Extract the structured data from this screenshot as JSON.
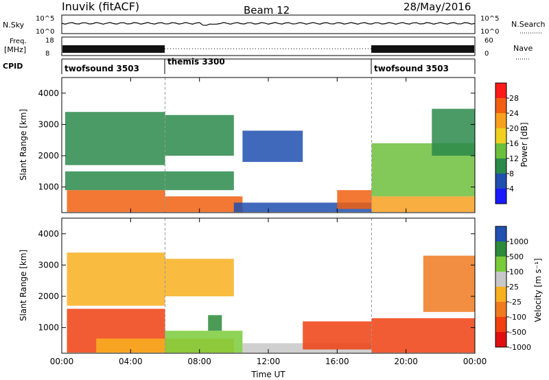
{
  "header": {
    "station": "Inuvik (fitACF)",
    "beam": "Beam 12",
    "date": "28/May/2016"
  },
  "strips": {
    "nsky_label": "N.Sky",
    "nsky_ticks": [
      "10^5",
      "10^0"
    ],
    "nsearch_label": "N.Search",
    "nsearch_ticks": [
      "10^5",
      "10^0"
    ],
    "freq_label_1": "Freq.",
    "freq_label_2": "[MHz]",
    "freq_ticks": [
      "18",
      "8"
    ],
    "nave_label": "Nave",
    "nave_ticks": [
      "60",
      "0"
    ],
    "cpid_label": "CPID",
    "cpid_segments": [
      {
        "name": "twofsound 3503",
        "start_hour": 0
      },
      {
        "name": "themis 3300",
        "start_hour": 6
      },
      {
        "name": "twofsound 3503",
        "start_hour": 18
      }
    ]
  },
  "colors": {
    "power": [
      "#1a1aff",
      "#1f4faf",
      "#2a8a4a",
      "#6cbf3c",
      "#f0d020",
      "#f7a020",
      "#f06010",
      "#ff1a1a"
    ],
    "velocity": [
      "#e01010",
      "#f04010",
      "#f07a20",
      "#f8b020",
      "#c8c8c8",
      "#7acb3a",
      "#2c8a3a",
      "#2050b0"
    ]
  },
  "chart_data": [
    {
      "type": "heatmap",
      "title": "",
      "xlabel": "",
      "ylabel": "Slant Range [km]",
      "xlim": [
        0,
        24
      ],
      "ylim": [
        180,
        4500
      ],
      "x_ticks": [
        "00:00",
        "04:00",
        "08:00",
        "12:00",
        "16:00",
        "20:00",
        "00:00"
      ],
      "y_ticks": [
        1000,
        2000,
        3000,
        4000
      ],
      "colorbar": {
        "label": "Power [dB]",
        "ticks": [
          "4",
          "8",
          "12",
          "16",
          "20",
          "24",
          "28"
        ],
        "range": [
          0,
          30
        ]
      },
      "regions": [
        {
          "t0": 0.3,
          "t1": 6,
          "r0": 200,
          "r1": 900,
          "value": 26
        },
        {
          "t0": 6,
          "t1": 10.5,
          "r0": 200,
          "r1": 700,
          "value": 24
        },
        {
          "t0": 0.2,
          "t1": 10,
          "r0": 900,
          "r1": 1500,
          "value": 10
        },
        {
          "t0": 0.2,
          "t1": 6,
          "r0": 1700,
          "r1": 3400,
          "value": 11
        },
        {
          "t0": 6,
          "t1": 10,
          "r0": 2000,
          "r1": 3300,
          "value": 8
        },
        {
          "t0": 10,
          "t1": 18,
          "r0": 200,
          "r1": 500,
          "value": 5
        },
        {
          "t0": 16,
          "t1": 18,
          "r0": 300,
          "r1": 900,
          "value": 25
        },
        {
          "t0": 10.5,
          "t1": 14,
          "r0": 1800,
          "r1": 2800,
          "value": 6
        },
        {
          "t0": 18,
          "t1": 24,
          "r0": 200,
          "r1": 700,
          "value": 22
        },
        {
          "t0": 18,
          "t1": 24,
          "r0": 700,
          "r1": 2400,
          "value": 14
        },
        {
          "t0": 21.5,
          "t1": 24,
          "r0": 2000,
          "r1": 3500,
          "value": 10
        }
      ]
    },
    {
      "type": "heatmap",
      "title": "",
      "xlabel": "Time UT",
      "ylabel": "Slant Range [km]",
      "xlim": [
        0,
        24
      ],
      "ylim": [
        180,
        4500
      ],
      "x_ticks": [
        "00:00",
        "04:00",
        "08:00",
        "12:00",
        "16:00",
        "20:00",
        "00:00"
      ],
      "y_ticks": [
        1000,
        2000,
        3000,
        4000
      ],
      "colorbar": {
        "label": "Velocity [m s⁻¹]",
        "ticks": [
          "1000",
          "500",
          "100",
          "25",
          "-25",
          "-100",
          "-500",
          "-1000"
        ],
        "range": [
          -1000,
          1000
        ]
      },
      "regions": [
        {
          "t0": 0.3,
          "t1": 6,
          "r0": 200,
          "r1": 1600,
          "value": -350
        },
        {
          "t0": 2,
          "t1": 10,
          "r0": 200,
          "r1": 650,
          "value": 0
        },
        {
          "t0": 6,
          "t1": 10.5,
          "r0": 200,
          "r1": 900,
          "value": 150
        },
        {
          "t0": 8.5,
          "t1": 9.3,
          "r0": 900,
          "r1": 1400,
          "value": 800
        },
        {
          "t0": 0.3,
          "t1": 6,
          "r0": 1700,
          "r1": 3400,
          "value": 0
        },
        {
          "t0": 10.5,
          "t1": 18,
          "r0": 200,
          "r1": 500,
          "value": 60
        },
        {
          "t0": 14,
          "t1": 18,
          "r0": 300,
          "r1": 1200,
          "value": -200
        },
        {
          "t0": 18,
          "t1": 24,
          "r0": 200,
          "r1": 1300,
          "value": -250
        },
        {
          "t0": 21,
          "t1": 24,
          "r0": 1500,
          "r1": 3300,
          "value": -60
        },
        {
          "t0": 6,
          "t1": 10,
          "r0": 2000,
          "r1": 3200,
          "value": 0
        }
      ]
    }
  ]
}
